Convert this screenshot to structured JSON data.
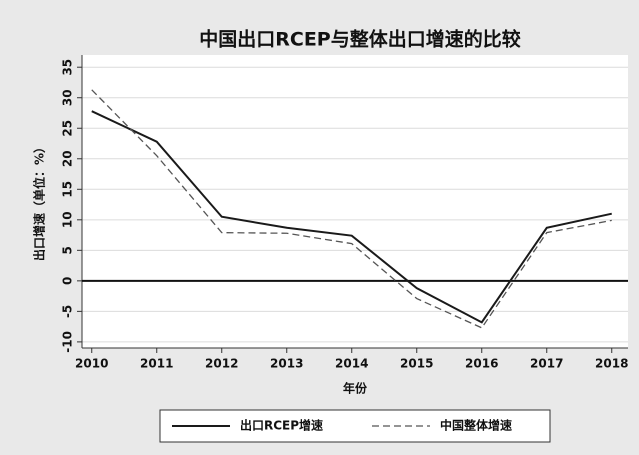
{
  "chart_data": {
    "type": "line",
    "title": "中国出口RCEP与整体出口增速的比较",
    "xlabel": "年份",
    "ylabel": "出口增速（单位：%）",
    "x": [
      2010,
      2011,
      2012,
      2013,
      2014,
      2015,
      2016,
      2017,
      2018
    ],
    "series": [
      {
        "name": "出口RCEP增速",
        "color": "#1a1a1a",
        "dash": "solid",
        "values": [
          27.8,
          22.8,
          10.5,
          8.7,
          7.4,
          -1.2,
          -6.8,
          8.7,
          11.0
        ]
      },
      {
        "name": "中国整体增速",
        "color": "#555555",
        "dash": "dashed",
        "values": [
          31.3,
          20.5,
          7.9,
          7.8,
          6.1,
          -2.9,
          -7.7,
          7.9,
          9.9
        ]
      }
    ],
    "xlim": [
      2009.85,
      2018.25
    ],
    "ylim": [
      -11,
      37
    ],
    "xticks": [
      2010,
      2011,
      2012,
      2013,
      2014,
      2015,
      2016,
      2017,
      2018
    ],
    "yticks": [
      -10,
      -5,
      0,
      5,
      10,
      15,
      20,
      25,
      30,
      35
    ],
    "hline": 0,
    "grid": true,
    "legend": "bottom"
  }
}
